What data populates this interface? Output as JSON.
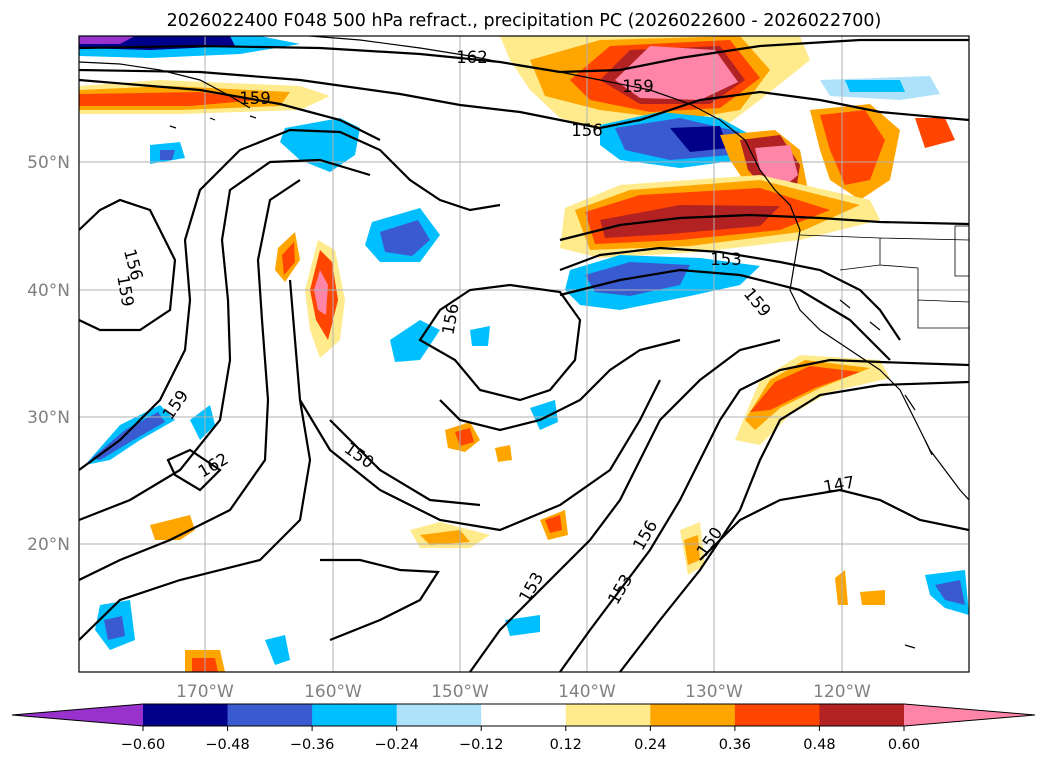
{
  "title": "2026022400 F048 500 hPa refract., precipitation PC (2026022600 - 2026022700)",
  "map": {
    "lon_range": [
      -180,
      -110
    ],
    "lat_range": [
      10,
      60
    ],
    "lon_ticks": [
      "170°W",
      "160°W",
      "150°W",
      "140°W",
      "130°W",
      "120°W"
    ],
    "lat_ticks": [
      "50°N",
      "40°N",
      "30°N",
      "20°N"
    ],
    "contour_labels": [
      "162",
      "159",
      "156",
      "159",
      "156",
      "153",
      "159",
      "159",
      "159",
      "162",
      "150",
      "153",
      "153",
      "156",
      "150",
      "147"
    ]
  },
  "colorbar": {
    "ticks": [
      "−0.60",
      "−0.48",
      "−0.36",
      "−0.24",
      "−0.12",
      "0.12",
      "0.24",
      "0.36",
      "0.48",
      "0.60"
    ],
    "colors": [
      "#9932CC",
      "#00008B",
      "#3A5BD0",
      "#00BFFF",
      "#ADE2FA",
      "#FFFFFF",
      "#FFEA8C",
      "#FFA500",
      "#FF4500",
      "#B22222",
      "#FF85A8"
    ]
  }
}
